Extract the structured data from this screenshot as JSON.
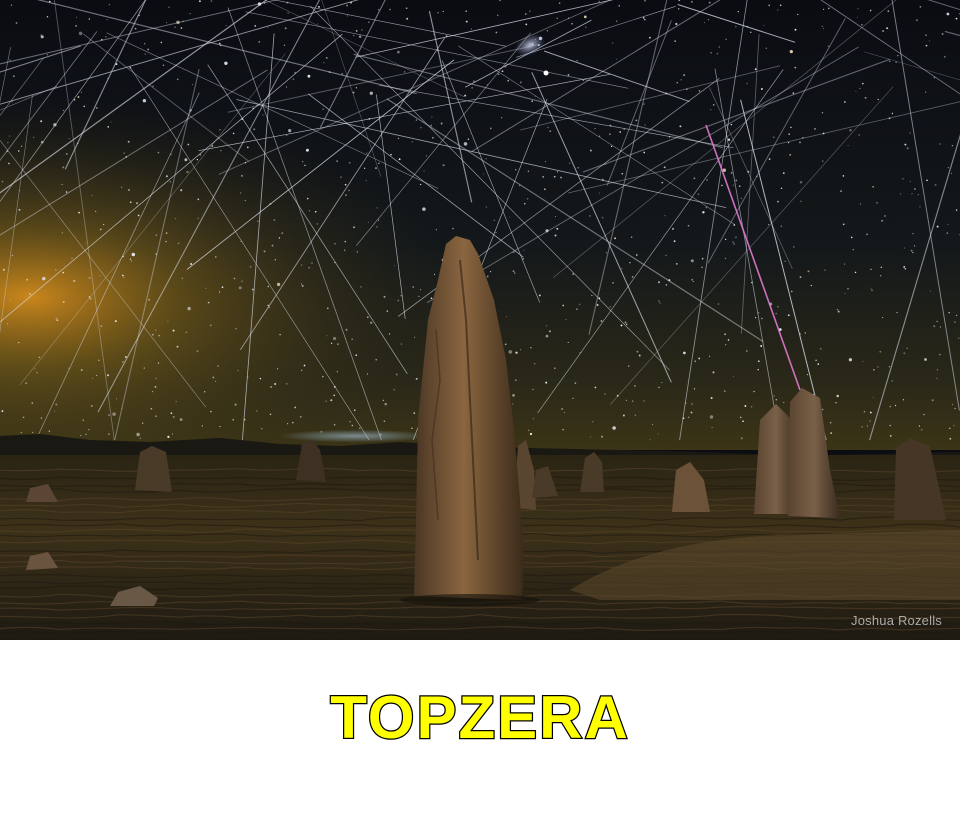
{
  "photo": {
    "credit": "Joshua Rozells"
  },
  "caption": {
    "text": "TOPZERA",
    "fill_color": "#ffff00",
    "outline_color": "#000000"
  },
  "scene": {
    "sky_color": "#0b0d12",
    "horizon_glow_color": "#c88a1e",
    "ground_color": "#3a2d1a",
    "rock_color": "#7a5a3a"
  }
}
